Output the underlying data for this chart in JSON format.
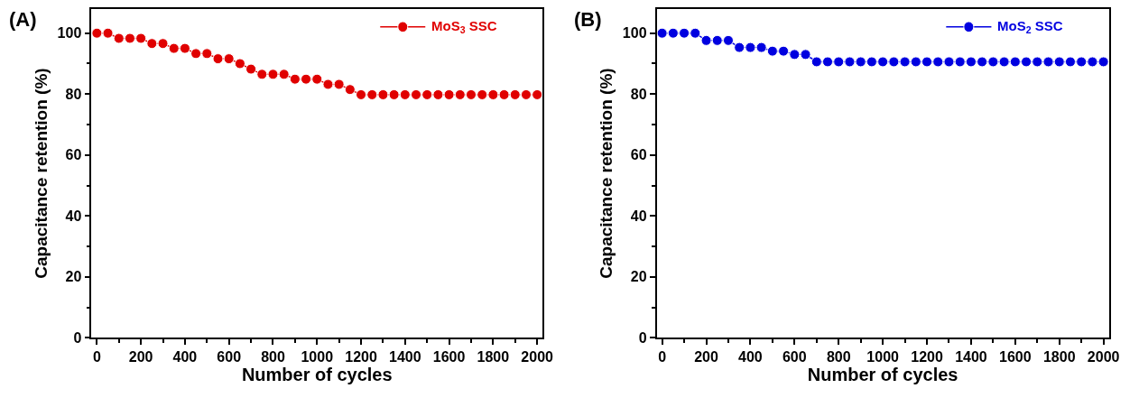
{
  "chart_data": [
    {
      "type": "line",
      "title": "(A)",
      "xlabel": "Number of cycles",
      "ylabel": "Capacitance retention (%)",
      "x": [
        0,
        50,
        100,
        150,
        200,
        250,
        300,
        350,
        400,
        450,
        500,
        550,
        600,
        650,
        700,
        750,
        800,
        850,
        900,
        950,
        1000,
        1050,
        1100,
        1150,
        1200,
        1250,
        1300,
        1350,
        1400,
        1450,
        1500,
        1550,
        1600,
        1650,
        1700,
        1750,
        1800,
        1850,
        1900,
        1950,
        2000
      ],
      "series": [
        {
          "name": "MoS$_{3}$ SSC",
          "color": "#e00000",
          "values": [
            100,
            100,
            98.3,
            98.3,
            98.3,
            96.6,
            96.6,
            95,
            95,
            93.3,
            93.3,
            91.6,
            91.6,
            90,
            88.2,
            86.5,
            86.5,
            86.5,
            84.9,
            84.9,
            84.9,
            83.2,
            83.2,
            81.5,
            79.8,
            79.8,
            79.8,
            79.8,
            79.8,
            79.8,
            79.8,
            79.8,
            79.8,
            79.8,
            79.8,
            79.8,
            79.8,
            79.8,
            79.8,
            79.8,
            79.8
          ]
        }
      ],
      "xlim": [
        -25,
        2025
      ],
      "xticks": [
        0,
        200,
        400,
        600,
        800,
        1000,
        1200,
        1400,
        1600,
        1800,
        2000
      ],
      "ylim": [
        0,
        108
      ],
      "yticks": [
        0,
        20,
        40,
        60,
        80,
        100
      ],
      "legend": "top right",
      "marker": "circle",
      "line_style": "solid"
    },
    {
      "type": "line",
      "title": "(B)",
      "xlabel": "Number of cycles",
      "ylabel": "Capacitance retention (%)",
      "x": [
        0,
        50,
        100,
        150,
        200,
        250,
        300,
        350,
        400,
        450,
        500,
        550,
        600,
        650,
        700,
        750,
        800,
        850,
        900,
        950,
        1000,
        1050,
        1100,
        1150,
        1200,
        1250,
        1300,
        1350,
        1400,
        1450,
        1500,
        1550,
        1600,
        1650,
        1700,
        1750,
        1800,
        1850,
        1900,
        1950,
        2000
      ],
      "series": [
        {
          "name": "MoS$_{2}$ SSC",
          "color": "#0000e0",
          "values": [
            100,
            100,
            100,
            100,
            97.6,
            97.6,
            97.6,
            95.3,
            95.3,
            95.3,
            94.1,
            94.1,
            93,
            93,
            90.6,
            90.6,
            90.6,
            90.6,
            90.6,
            90.6,
            90.6,
            90.6,
            90.6,
            90.6,
            90.6,
            90.6,
            90.6,
            90.6,
            90.6,
            90.6,
            90.6,
            90.6,
            90.6,
            90.6,
            90.6,
            90.6,
            90.6,
            90.6,
            90.6,
            90.6,
            90.6
          ]
        }
      ],
      "xlim": [
        -25,
        2025
      ],
      "xticks": [
        0,
        200,
        400,
        600,
        800,
        1000,
        1200,
        1400,
        1600,
        1800,
        2000
      ],
      "ylim": [
        0,
        108
      ],
      "yticks": [
        0,
        20,
        40,
        60,
        80,
        100
      ],
      "legend": "top right",
      "marker": "circle",
      "line_style": "solid"
    }
  ]
}
